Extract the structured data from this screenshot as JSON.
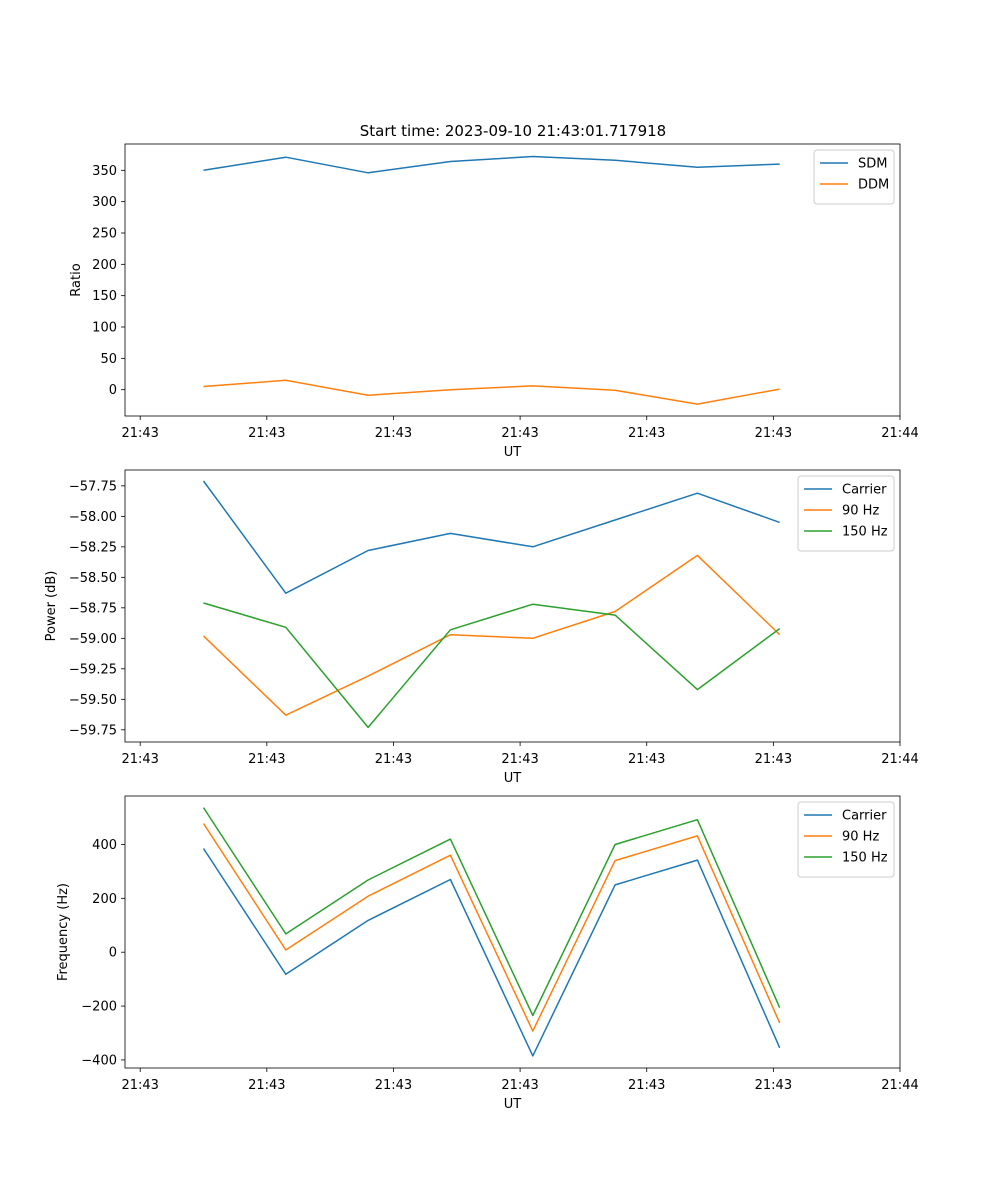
{
  "figure_title": "Start time: 2023-09-10 21:43:01.717918",
  "colors": {
    "blue": "#1f77b4",
    "orange": "#ff7f0e",
    "green": "#2ca02c"
  },
  "chart_data": [
    {
      "type": "line",
      "title": "Start time: 2023-09-10 21:43:01.717918",
      "xlabel": "UT",
      "ylabel": "Ratio",
      "x_tick_labels": [
        "21:43",
        "21:43",
        "21:43",
        "21:43",
        "21:43",
        "21:43",
        "21:44"
      ],
      "x_tick_positions": [
        0,
        1,
        2,
        3,
        4,
        5,
        6
      ],
      "x": [
        0.5,
        1.15,
        1.8,
        2.45,
        3.1,
        3.75,
        4.4,
        5.05
      ],
      "xlim": [
        -0.12,
        6.0
      ],
      "ylim": [
        -42,
        392
      ],
      "y_ticks": [
        0,
        50,
        100,
        150,
        200,
        250,
        300,
        350
      ],
      "legend": "top-right",
      "series": [
        {
          "name": "SDM",
          "color": "#1f77b4",
          "values": [
            350,
            371,
            346,
            364,
            372,
            366,
            355,
            360
          ]
        },
        {
          "name": "DDM",
          "color": "#ff7f0e",
          "values": [
            5,
            15,
            -9,
            0,
            6,
            -1,
            -23,
            1
          ]
        }
      ]
    },
    {
      "type": "line",
      "xlabel": "UT",
      "ylabel": "Power (dB)",
      "x_tick_labels": [
        "21:43",
        "21:43",
        "21:43",
        "21:43",
        "21:43",
        "21:43",
        "21:44"
      ],
      "x_tick_positions": [
        0,
        1,
        2,
        3,
        4,
        5,
        6
      ],
      "x": [
        0.5,
        1.15,
        1.8,
        2.45,
        3.1,
        3.75,
        4.4,
        5.05
      ],
      "xlim": [
        -0.12,
        6.0
      ],
      "ylim": [
        -59.85,
        -57.62
      ],
      "y_ticks": [
        -59.75,
        -59.5,
        -59.25,
        -59.0,
        -58.75,
        -58.5,
        -58.25,
        -58.0,
        -57.75
      ],
      "y_tick_labels": [
        "−59.75",
        "−59.50",
        "−59.25",
        "−59.00",
        "−58.75",
        "−58.50",
        "−58.25",
        "−58.00",
        "−57.75"
      ],
      "legend": "top-right",
      "series": [
        {
          "name": "Carrier",
          "color": "#1f77b4",
          "values": [
            -57.71,
            -58.63,
            -58.28,
            -58.14,
            -58.25,
            -58.03,
            -57.81,
            -58.05
          ]
        },
        {
          "name": "90 Hz",
          "color": "#ff7f0e",
          "values": [
            -58.98,
            -59.63,
            -59.31,
            -58.97,
            -59.0,
            -58.78,
            -58.32,
            -58.97
          ]
        },
        {
          "name": "150 Hz",
          "color": "#2ca02c",
          "values": [
            -58.71,
            -58.91,
            -59.73,
            -58.93,
            -58.72,
            -58.81,
            -59.42,
            -58.92
          ]
        }
      ]
    },
    {
      "type": "line",
      "xlabel": "UT",
      "ylabel": "Frequency (Hz)",
      "x_tick_labels": [
        "21:43",
        "21:43",
        "21:43",
        "21:43",
        "21:43",
        "21:43",
        "21:44"
      ],
      "x_tick_positions": [
        0,
        1,
        2,
        3,
        4,
        5,
        6
      ],
      "x": [
        0.5,
        1.15,
        1.8,
        2.45,
        3.1,
        3.75,
        4.4,
        5.05
      ],
      "xlim": [
        -0.12,
        6.0
      ],
      "ylim": [
        -430,
        580
      ],
      "y_ticks": [
        -400,
        -200,
        0,
        200,
        400
      ],
      "y_tick_labels": [
        "−400",
        "−200",
        "0",
        "200",
        "400"
      ],
      "legend": "top-right",
      "series": [
        {
          "name": "Carrier",
          "color": "#1f77b4",
          "values": [
            385,
            -82,
            118,
            270,
            -385,
            250,
            342,
            -355
          ]
        },
        {
          "name": "90 Hz",
          "color": "#ff7f0e",
          "values": [
            478,
            8,
            208,
            360,
            -293,
            340,
            432,
            -263
          ]
        },
        {
          "name": "150 Hz",
          "color": "#2ca02c",
          "values": [
            537,
            68,
            268,
            420,
            -235,
            400,
            492,
            -206
          ]
        }
      ]
    }
  ]
}
